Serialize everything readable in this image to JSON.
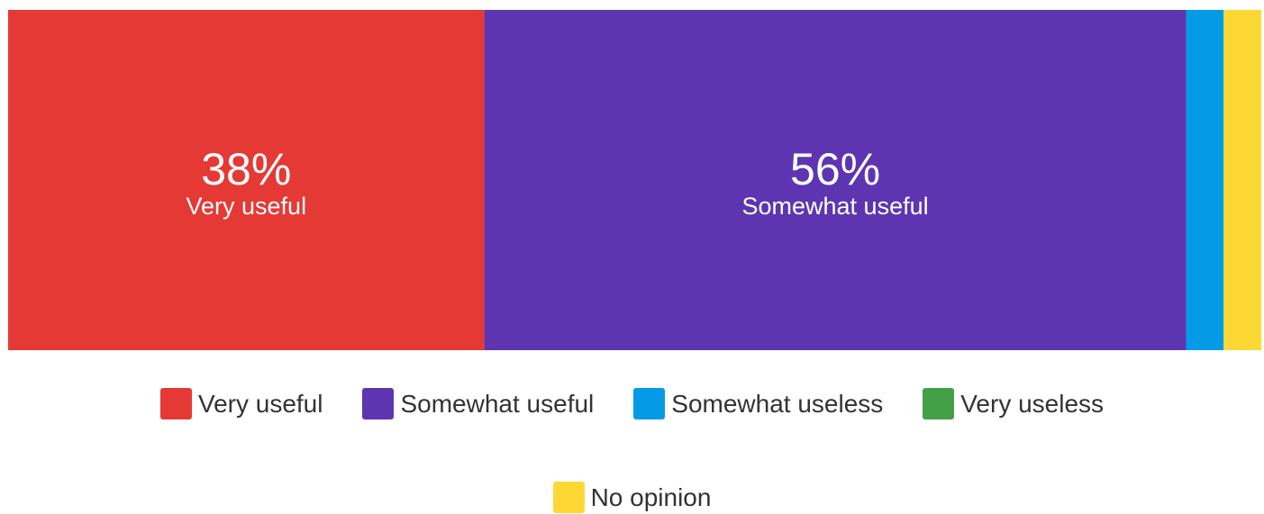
{
  "chart_data": {
    "type": "bar",
    "orientation": "horizontal-stacked-100",
    "categories": [
      "Very useful",
      "Somewhat useful",
      "Somewhat useless",
      "Very useless",
      "No opinion"
    ],
    "values": [
      38,
      56,
      3,
      0,
      3
    ],
    "value_labels": [
      "38%",
      "56%",
      "",
      "",
      ""
    ],
    "segment_labels": [
      "Very useful",
      "Somewhat useful",
      "",
      "",
      ""
    ],
    "colors": [
      "#E53935",
      "#5E35B1",
      "#039BE5",
      "#43A047",
      "#FDD835"
    ],
    "legend": {
      "placement": "bottom",
      "entries": [
        "Very useful",
        "Somewhat useful",
        "Somewhat useless",
        "Very useless",
        "No opinion"
      ]
    },
    "title": "",
    "xlabel": "",
    "ylabel": "",
    "grid": false
  }
}
